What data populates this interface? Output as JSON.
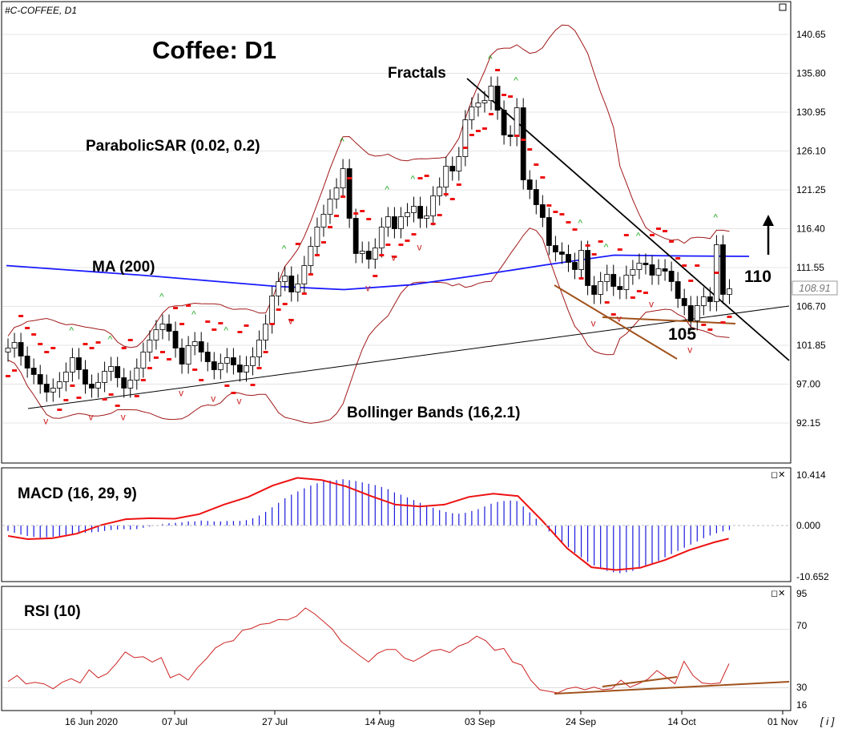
{
  "symbol_label": "#C-COFFEE, D1",
  "main_title": "Coffee: D1",
  "annotations": {
    "fractals": "Fractals",
    "parabolic_sar": "ParabolicSAR (0.02, 0.2)",
    "ma": "MA (200)",
    "bollinger": "Bollinger Bands (16,2.1)",
    "level_110": "110",
    "level_105": "105"
  },
  "current_price": "108.91",
  "panels": {
    "macd": {
      "label": "MACD (16, 29, 9)",
      "ticks": [
        "10.414",
        "0.000",
        "-10.652"
      ]
    },
    "rsi": {
      "label": "RSI (10)",
      "ticks": [
        "95",
        "70",
        "30",
        "16"
      ]
    }
  },
  "footer_button": "[ i ]",
  "colors": {
    "bull": "#ffffff",
    "bear": "#000000",
    "ma": "#1a1aff",
    "bollinger": "#a01818",
    "sar": "#ee1111",
    "fractal_up": "#22aa22",
    "fractal_down": "#cc2222",
    "macd_hist": "#1a1add",
    "macd_signal": "#ee1111",
    "rsi": "#cc2222",
    "trend": "#a0521c"
  },
  "chart_data": [
    {
      "type": "candlestick",
      "ylim": [
        90,
        144
      ],
      "yticks": [
        140.65,
        135.8,
        130.95,
        126.1,
        121.25,
        116.4,
        111.55,
        106.7,
        101.85,
        97.0,
        92.15
      ],
      "xticks": [
        "16 Jun 2020",
        "07 Jul",
        "27 Jul",
        "14 Aug",
        "03 Sep",
        "24 Sep",
        "14 Oct",
        "01 Nov"
      ],
      "indicators": [
        "MA (200)",
        "Bollinger Bands (16,2.1)",
        "ParabolicSAR (0.02, 0.2)",
        "Fractals"
      ],
      "close": [
        101.5,
        102.2,
        100.5,
        99.0,
        98.2,
        97.0,
        96.0,
        96.5,
        97.3,
        98.5,
        100.3,
        98.8,
        97.0,
        96.5,
        97.2,
        98.6,
        99.2,
        97.8,
        96.5,
        97.5,
        99.0,
        101.0,
        102.5,
        103.8,
        104.5,
        103.6,
        101.5,
        99.5,
        101.8,
        102.3,
        101.0,
        99.8,
        98.8,
        99.6,
        100.3,
        99.4,
        98.5,
        99.3,
        100.4,
        102.5,
        104.5,
        108.0,
        109.8,
        110.5,
        108.5,
        109.5,
        111.8,
        114.2,
        116.6,
        118.2,
        120.1,
        121.5,
        123.9,
        117.7,
        113.3,
        113.6,
        112.6,
        114.0,
        116.6,
        117.9,
        116.4,
        117.9,
        118.4,
        119.2,
        117.7,
        118.0,
        120.5,
        121.6,
        124.2,
        123.6,
        125.4,
        130.0,
        131.6,
        132.1,
        132.4,
        134.2,
        131.2,
        128.1,
        127.9,
        131.5,
        122.5,
        121.3,
        119.4,
        117.8,
        114.3,
        113.5,
        113.2,
        112.2,
        111.3,
        113.7,
        109.3,
        108.2,
        109.8,
        110.7,
        109.2,
        108.8,
        110.6,
        111.3,
        112.1,
        111.9,
        110.6,
        111.4,
        111.1,
        109.8,
        107.7,
        106.8,
        104.9,
        106.8,
        107.9,
        107.3,
        114.4,
        108.2,
        108.9
      ],
      "ma_values": [
        111.8,
        111.2,
        110.6,
        109.9,
        109.2,
        108.8,
        109.4,
        110.6,
        111.9,
        113.1,
        113.0,
        112.95
      ],
      "macd_range": [
        -10.652,
        10.414
      ],
      "macd_hist": [
        -1.2,
        -1.6,
        -2.0,
        -2.3,
        -2.5,
        -2.7,
        -2.6,
        -2.5,
        -2.3,
        -2.2,
        -2.0,
        -1.8,
        -1.6,
        -1.5,
        -1.4,
        -1.2,
        -1.0,
        -0.9,
        -0.8,
        -0.9,
        -0.8,
        -0.5,
        -0.2,
        0.0,
        0.3,
        0.5,
        0.6,
        0.7,
        0.9,
        0.9,
        1.1,
        1.0,
        0.9,
        0.9,
        1.0,
        1.0,
        1.0,
        1.2,
        1.6,
        2.2,
        3.0,
        4.0,
        5.0,
        6.0,
        6.8,
        7.5,
        8.2,
        8.8,
        9.3,
        9.8,
        9.9,
        10.0,
        10.2,
        10.0,
        9.8,
        9.5,
        9.2,
        8.9,
        8.5,
        8.0,
        7.3,
        6.8,
        6.2,
        5.6,
        5.0,
        4.4,
        3.9,
        3.4,
        3.0,
        2.7,
        2.6,
        2.8,
        3.2,
        3.6,
        4.2,
        4.8,
        5.2,
        5.4,
        5.5,
        5.4,
        4.2,
        2.9,
        1.5,
        0.0,
        -1.3,
        -2.5,
        -3.7,
        -4.8,
        -6.0,
        -7.0,
        -8.0,
        -8.8,
        -9.5,
        -10.0,
        -10.3,
        -10.5,
        -10.3,
        -10.0,
        -9.5,
        -9.0,
        -8.5,
        -7.8,
        -7.0,
        -6.3,
        -5.6,
        -4.9,
        -4.2,
        -3.5,
        -2.8,
        -2.2,
        -1.7,
        -1.3,
        -1.0
      ],
      "macd_signal": [
        [
          0,
          -2.3
        ],
        [
          8,
          -3.0
        ],
        [
          18,
          -2.8
        ],
        [
          28,
          -1.8
        ],
        [
          38,
          0.1
        ],
        [
          48,
          1.4
        ],
        [
          58,
          1.6
        ],
        [
          68,
          1.5
        ],
        [
          78,
          2.5
        ],
        [
          88,
          4.6
        ],
        [
          98,
          6.3
        ],
        [
          108,
          8.8
        ],
        [
          118,
          10.5
        ],
        [
          128,
          10.0
        ],
        [
          138,
          8.6
        ],
        [
          148,
          6.5
        ],
        [
          158,
          4.6
        ],
        [
          168,
          4.2
        ],
        [
          178,
          4.6
        ],
        [
          188,
          6.3
        ],
        [
          198,
          7.0
        ],
        [
          208,
          6.5
        ],
        [
          218,
          1.0
        ],
        [
          228,
          -5.0
        ],
        [
          238,
          -9.2
        ],
        [
          248,
          -9.8
        ],
        [
          258,
          -9.3
        ],
        [
          268,
          -7.6
        ],
        [
          278,
          -5.4
        ],
        [
          288,
          -3.7
        ],
        [
          294,
          -2.9
        ]
      ],
      "rsi_range": [
        16,
        95
      ],
      "rsi_ticks": [
        95,
        70,
        30,
        16
      ],
      "rsi_values": [
        34.2,
        38.4,
        32.6,
        33.7,
        32.6,
        29.3,
        33.7,
        36.2,
        33.3,
        42.3,
        36.8,
        39.7,
        46.5,
        54.5,
        50.6,
        51.2,
        47.6,
        50.6,
        36.8,
        39.4,
        35.2,
        43.6,
        49.8,
        57.2,
        60.8,
        62.2,
        69.3,
        70.6,
        73.4,
        74.1,
        76.7,
        76.4,
        79.0,
        84.6,
        80.7,
        75.4,
        70.0,
        61.5,
        56.9,
        52.0,
        47.6,
        53.5,
        56.2,
        56.2,
        50.3,
        48.1,
        51.5,
        55.3,
        56.2,
        54.1,
        58.5,
        60.8,
        65.3,
        62.2,
        55.6,
        56.9,
        47.6,
        45.5,
        35.2,
        28.6,
        27.5,
        26.4,
        29.3,
        30.4,
        28.6,
        30.4,
        28.6,
        29.3,
        35.2,
        30.4,
        32.8,
        35.9,
        41.8,
        37.3,
        32.6,
        48.1,
        38.4,
        33.3,
        32.6,
        33.3,
        46.5
      ],
      "trend_line": [
        [
          35,
          510
        ],
        [
          985,
          382
        ]
      ],
      "down_trend": [
        [
          583,
          98
        ],
        [
          985,
          450
        ]
      ],
      "support_105": "105",
      "target_110": "110"
    }
  ]
}
